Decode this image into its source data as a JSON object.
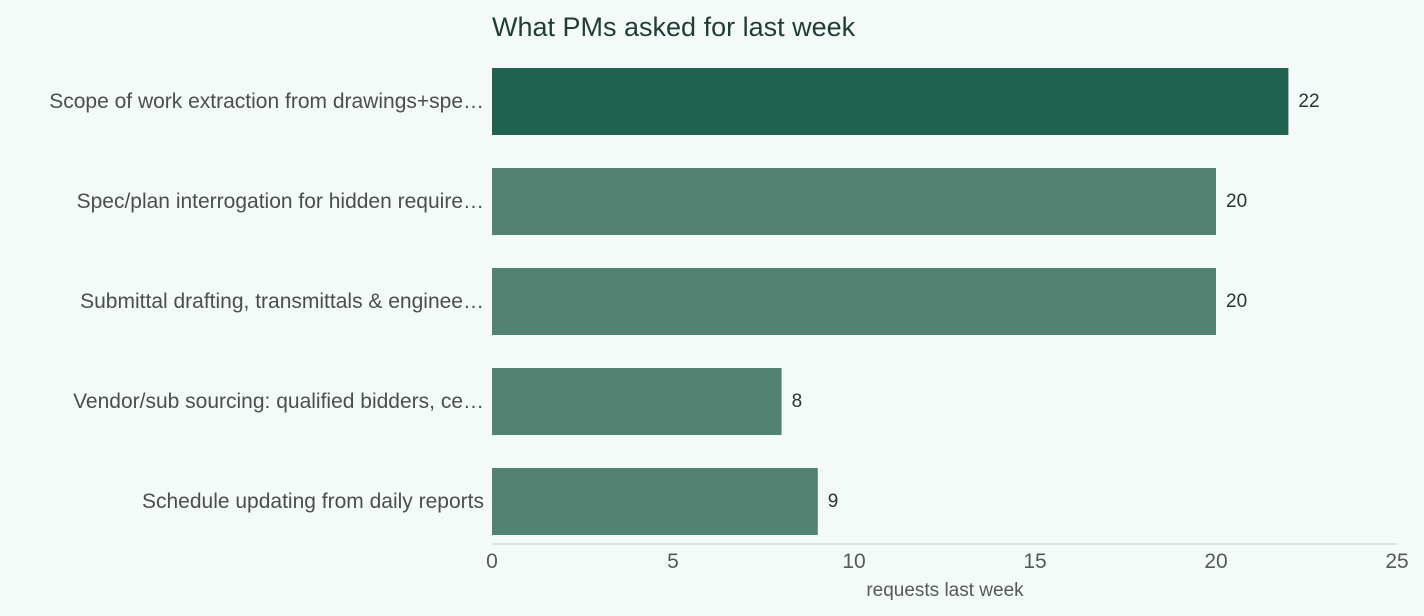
{
  "chart_data": {
    "type": "bar",
    "orientation": "horizontal",
    "title": "What PMs asked for last week",
    "xlabel": "requests last week",
    "ylabel": "",
    "xlim": [
      0,
      25
    ],
    "xticks": [
      0,
      5,
      10,
      15,
      20,
      25
    ],
    "grid": false,
    "categories": [
      "Scope of work extraction from drawings+spe…",
      "Spec/plan interrogation for hidden require…",
      "Submittal drafting, transmittals & enginee…",
      "Vendor/sub sourcing: qualified bidders, ce…",
      "Schedule updating from daily reports"
    ],
    "values": [
      22,
      20,
      20,
      8,
      9
    ],
    "colors": {
      "highlight": "#216150",
      "bar": "#528271",
      "axis": "#d3d8d6",
      "background": "#f4faf7"
    }
  }
}
